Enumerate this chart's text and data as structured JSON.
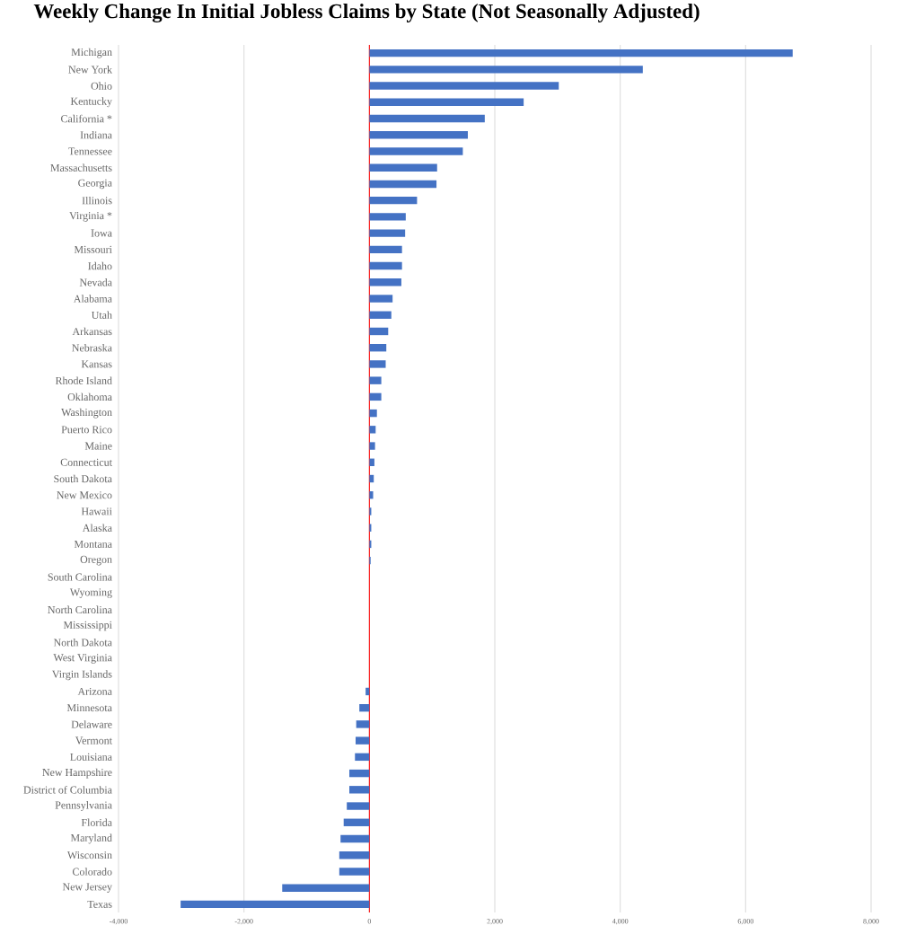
{
  "chart_data": {
    "type": "bar",
    "orientation": "horizontal",
    "title": "Weekly Change In Initial Jobless Claims by State (Not Seasonally Adjusted)",
    "categories": [
      "Michigan",
      "New York",
      "Ohio",
      "Kentucky",
      "California *",
      "Indiana",
      "Tennessee",
      "Massachusetts",
      "Georgia",
      "Illinois",
      "Virginia *",
      "Iowa",
      "Missouri",
      "Idaho",
      "Nevada",
      "Alabama",
      "Utah",
      "Arkansas",
      "Nebraska",
      "Kansas",
      "Rhode Island",
      "Oklahoma",
      "Washington",
      "Puerto Rico",
      "Maine",
      "Connecticut",
      "South Dakota",
      "New Mexico",
      "Hawaii",
      "Alaska",
      "Montana",
      "Oregon",
      "South Carolina",
      "Wyoming",
      "North Carolina",
      "Mississippi",
      "North Dakota",
      "West Virginia",
      "Virgin Islands",
      "Arizona",
      "Minnesota",
      "Delaware",
      "Vermont",
      "Louisiana",
      "New Hampshire",
      "District of Columbia",
      "Pennsylvania",
      "Florida",
      "Maryland",
      "Wisconsin",
      "Colorado",
      "New Jersey",
      "Texas"
    ],
    "values": [
      6750,
      4360,
      3020,
      2460,
      1840,
      1570,
      1490,
      1080,
      1070,
      760,
      580,
      570,
      520,
      520,
      510,
      370,
      350,
      300,
      270,
      260,
      190,
      190,
      120,
      100,
      90,
      80,
      70,
      60,
      30,
      30,
      30,
      20,
      0,
      0,
      0,
      0,
      0,
      0,
      0,
      -60,
      -160,
      -210,
      -220,
      -230,
      -320,
      -320,
      -360,
      -410,
      -460,
      -480,
      -480,
      -1390,
      -3010
    ],
    "color": "#4472c4",
    "xlim": [
      -4000,
      8000
    ],
    "xticks": [
      {
        "value": -4000,
        "label": "-4,000"
      },
      {
        "value": -2000,
        "label": "-2,000"
      },
      0,
      {
        "value": 2000,
        "label": "2,000"
      },
      {
        "value": 4000,
        "label": "4,000"
      },
      {
        "value": 6000,
        "label": "6,000"
      },
      {
        "value": 8000,
        "label": "8,000"
      }
    ],
    "grid": "x",
    "ref_lines": [
      {
        "axis": "x",
        "value": 0,
        "color": "#ff0000"
      }
    ]
  }
}
